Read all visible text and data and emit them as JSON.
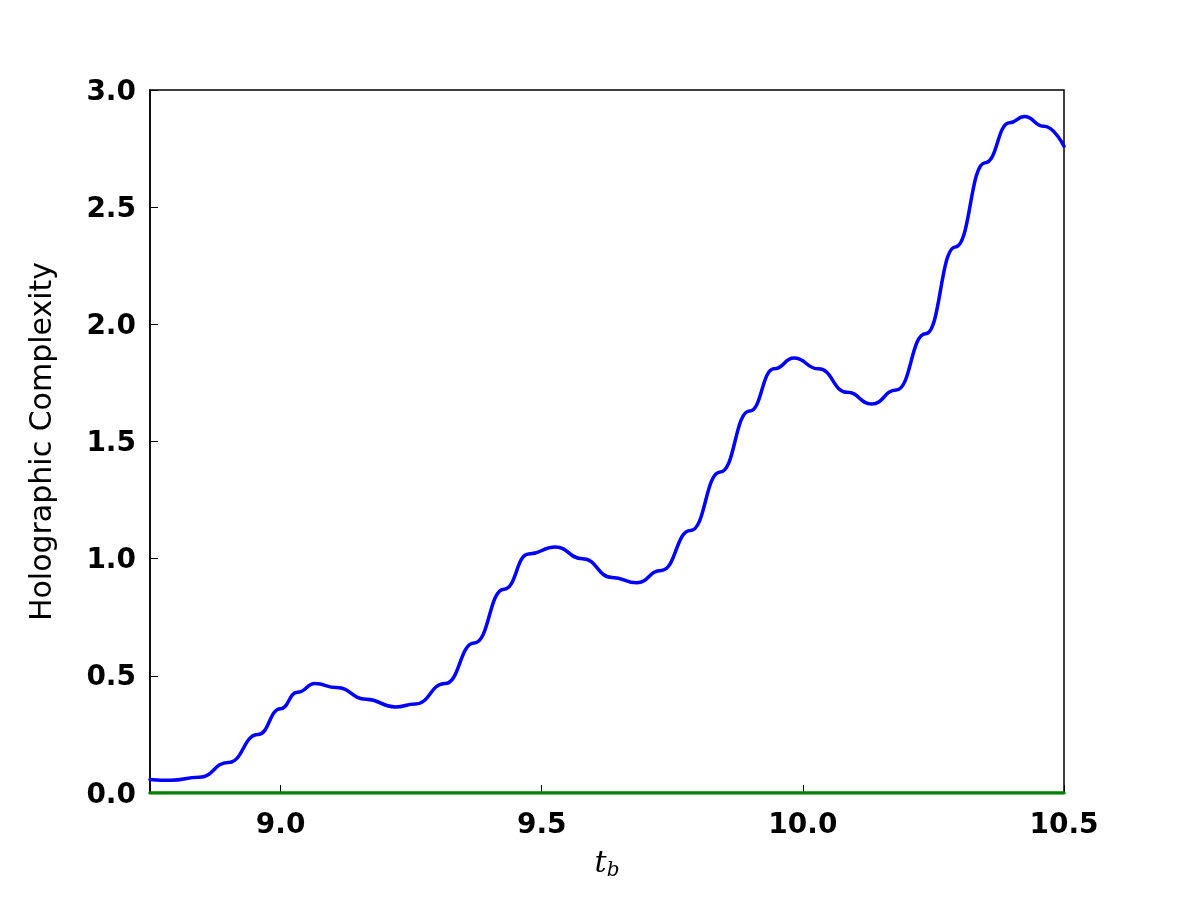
{
  "chart_data": {
    "type": "line",
    "xlabel": "t$_{b}$",
    "ylabel": "Holographic Complexity",
    "xlim": [
      8.75,
      10.5
    ],
    "xticks": [
      {
        "value": 9,
        "label": "9.0"
      },
      {
        "value": 9.5,
        "label": "9.5"
      },
      {
        "value": 10,
        "label": "10.0"
      },
      {
        "value": 10.5,
        "label": "10.5"
      }
    ],
    "ylim": [
      0,
      3
    ],
    "yticks": [
      {
        "value": 0,
        "label": "0.0"
      },
      {
        "value": 0.5,
        "label": "0.5"
      },
      {
        "value": 1,
        "label": "1.0"
      },
      {
        "value": 1.5,
        "label": "1.5"
      },
      {
        "value": 2,
        "label": "2.0"
      },
      {
        "value": 2.5,
        "label": "2.5"
      },
      {
        "value": 3,
        "label": "3.0"
      }
    ],
    "grid": false,
    "marker": "none",
    "line_style": "solid",
    "series": [
      {
        "color": "#0000ff",
        "x": [
          8.75,
          8.79,
          8.844,
          8.9,
          8.957,
          9.0,
          9.032,
          9.066,
          9.107,
          9.164,
          9.22,
          9.258,
          9.315,
          9.371,
          9.428,
          9.475,
          9.526,
          9.578,
          9.635,
          9.682,
          9.729,
          9.785,
          9.842,
          9.898,
          9.945,
          9.983,
          10.03,
          10.085,
          10.132,
          10.179,
          10.235,
          10.292,
          10.349,
          10.396,
          10.424,
          10.462,
          10.5
        ],
        "values": [
          0.058,
          0.054,
          0.067,
          0.13,
          0.25,
          0.36,
          0.43,
          0.467,
          0.45,
          0.4,
          0.367,
          0.38,
          0.467,
          0.64,
          0.87,
          1.02,
          1.05,
          1.0,
          0.92,
          0.897,
          0.95,
          1.12,
          1.37,
          1.63,
          1.81,
          1.856,
          1.81,
          1.71,
          1.66,
          1.72,
          1.96,
          2.33,
          2.69,
          2.86,
          2.887,
          2.845,
          2.76
        ]
      },
      {
        "color": "#008000",
        "x": [
          8.75,
          10.5
        ],
        "values": [
          0,
          0
        ]
      }
    ]
  }
}
